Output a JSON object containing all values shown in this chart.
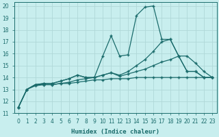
{
  "xlabel": "Humidex (Indice chaleur)",
  "xlim": [
    -0.5,
    23.5
  ],
  "ylim": [
    11,
    20.3
  ],
  "yticks": [
    11,
    12,
    13,
    14,
    15,
    16,
    17,
    18,
    19,
    20
  ],
  "xticks": [
    0,
    1,
    2,
    3,
    4,
    5,
    6,
    7,
    8,
    9,
    10,
    11,
    12,
    13,
    14,
    15,
    16,
    17,
    18,
    19,
    20,
    21,
    22,
    23
  ],
  "bg_color": "#c8eeee",
  "line_color": "#1a6b6b",
  "grid_color": "#b0d8d8",
  "line1_x": [
    0,
    1,
    2,
    3,
    4,
    5,
    6,
    7,
    8,
    9,
    10,
    11,
    12,
    13,
    14,
    15,
    16,
    17,
    18,
    19,
    20,
    21,
    22,
    23
  ],
  "line1_y": [
    11.5,
    13.0,
    13.4,
    13.5,
    13.5,
    13.7,
    13.9,
    14.2,
    14.0,
    14.0,
    15.8,
    17.5,
    15.8,
    15.9,
    19.2,
    19.9,
    20.0,
    17.2,
    17.2,
    15.8,
    14.5,
    14.5,
    14.0,
    14.0
  ],
  "line2_x": [
    0,
    1,
    2,
    3,
    4,
    5,
    6,
    7,
    8,
    9,
    10,
    11,
    12,
    13,
    14,
    15,
    16,
    17,
    18,
    19,
    20,
    21,
    22,
    23
  ],
  "line2_y": [
    11.5,
    13.0,
    13.4,
    13.5,
    13.5,
    13.7,
    13.9,
    14.2,
    14.0,
    14.0,
    14.2,
    14.4,
    14.2,
    14.5,
    15.0,
    15.5,
    16.2,
    17.0,
    17.2,
    15.8,
    14.5,
    14.5,
    14.0,
    14.0
  ],
  "line3_x": [
    0,
    1,
    2,
    3,
    4,
    5,
    6,
    7,
    8,
    9,
    10,
    11,
    12,
    13,
    14,
    15,
    16,
    17,
    18,
    19,
    20,
    21,
    22,
    23
  ],
  "line3_y": [
    11.5,
    13.0,
    13.4,
    13.4,
    13.4,
    13.5,
    13.6,
    13.8,
    13.9,
    14.0,
    14.2,
    14.4,
    14.1,
    14.3,
    14.5,
    14.7,
    15.0,
    15.3,
    15.5,
    15.8,
    15.8,
    15.2,
    14.5,
    14.0
  ],
  "line4_x": [
    0,
    1,
    2,
    3,
    4,
    5,
    6,
    7,
    8,
    9,
    10,
    11,
    12,
    13,
    14,
    15,
    16,
    17,
    18,
    19,
    20,
    21,
    22,
    23
  ],
  "line4_y": [
    11.5,
    13.0,
    13.3,
    13.4,
    13.4,
    13.5,
    13.5,
    13.6,
    13.7,
    13.8,
    13.8,
    13.9,
    13.9,
    13.9,
    14.0,
    14.0,
    14.0,
    14.0,
    14.0,
    14.0,
    14.0,
    14.0,
    14.0,
    14.0
  ]
}
